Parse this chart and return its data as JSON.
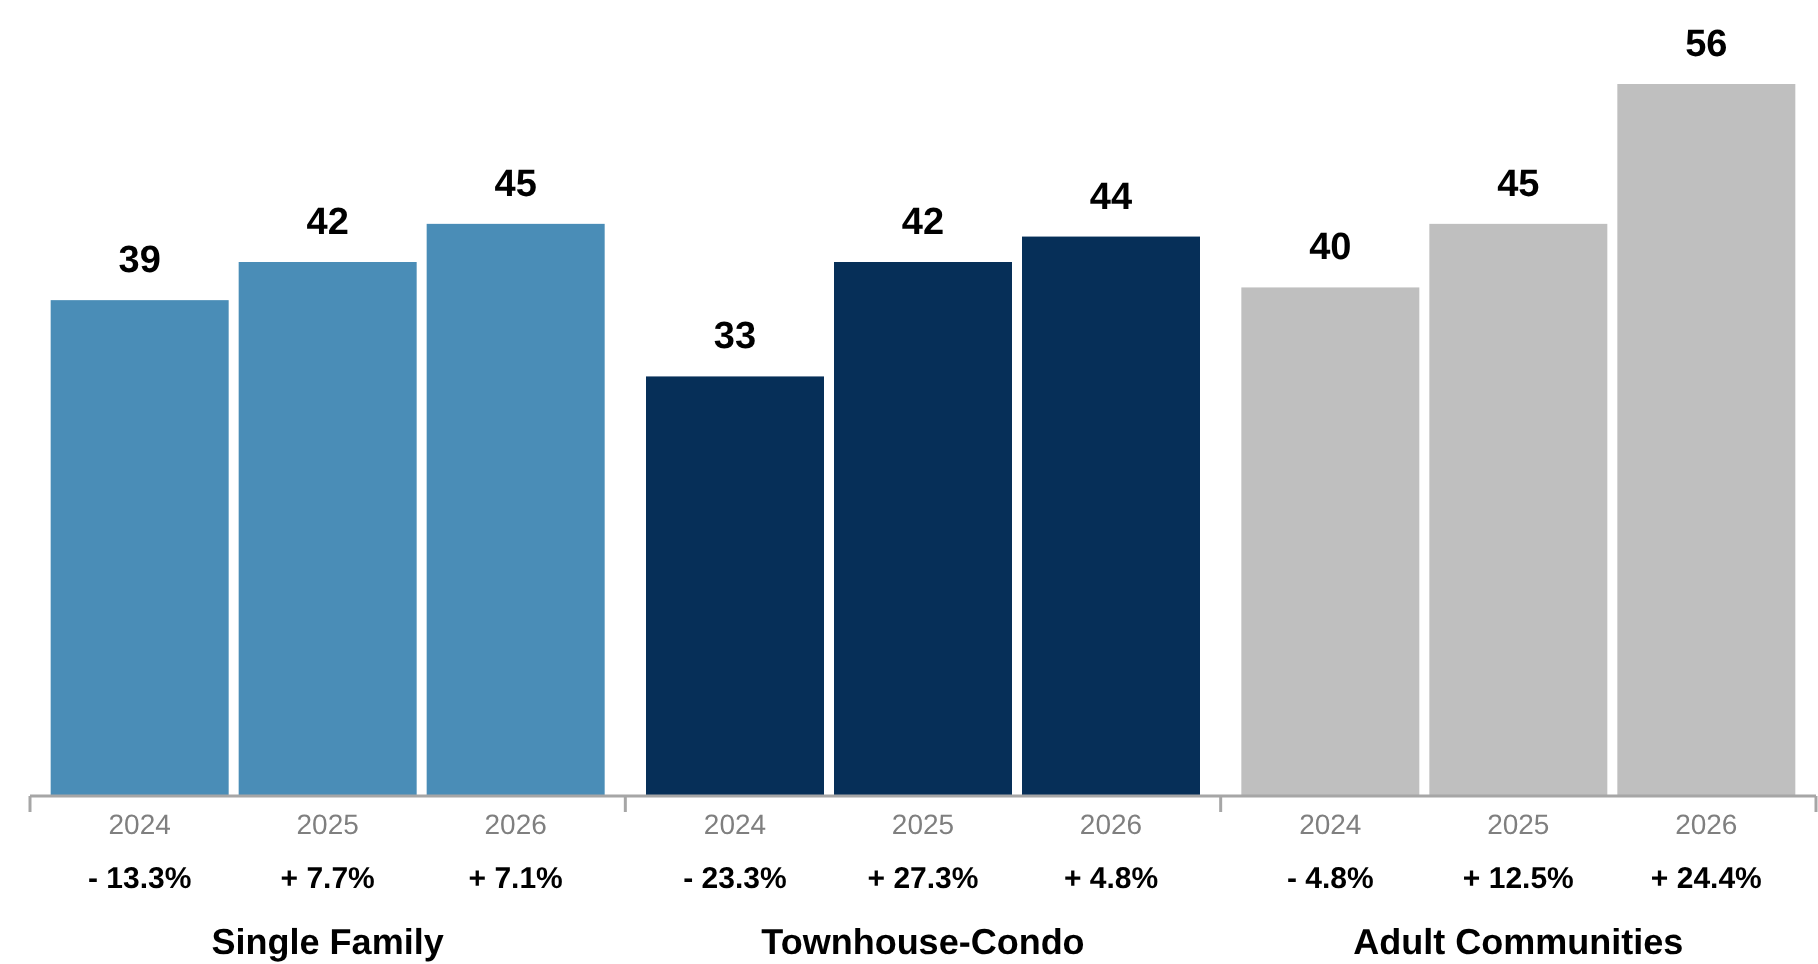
{
  "chart_data": {
    "type": "bar",
    "categories": [
      "2024",
      "2025",
      "2026",
      "2024",
      "2025",
      "2026",
      "2024",
      "2025",
      "2026"
    ],
    "values": [
      39,
      42,
      45,
      33,
      42,
      44,
      40,
      45,
      56
    ],
    "colors": [
      "#4a8db7",
      "#4a8db7",
      "#4a8db7",
      "#062f58",
      "#062f58",
      "#062f58",
      "#bfbfbf",
      "#bfbfbf",
      "#bfbfbf"
    ],
    "data_labels": true,
    "annotations": [
      "- 13.3%",
      "+ 7.7%",
      "+ 7.1%",
      "- 23.3%",
      "+ 27.3%",
      "+ 4.8%",
      "- 4.8%",
      "+ 12.5%",
      "+ 24.4%",
      "Single Family",
      "Townhouse-Condo",
      "Adult Communities"
    ]
  }
}
